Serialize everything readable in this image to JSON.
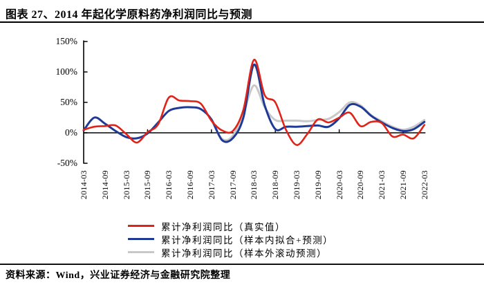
{
  "header": {
    "title": "图表 27、2014 年起化学原料药净利润同比与预测"
  },
  "footer": {
    "source": "资料来源：Wind，兴业证券经济与金融研究院整理"
  },
  "chart_data": {
    "type": "line",
    "title": "2014 年起化学原料药净利润同比与预测",
    "xlabel": "",
    "ylabel": "",
    "ylim": [
      -50,
      150
    ],
    "grid": "off",
    "legend_position": "bottom",
    "y_ticks": [
      {
        "label": "150%",
        "value": 150
      },
      {
        "label": "100%",
        "value": 100
      },
      {
        "label": "50%",
        "value": 50
      },
      {
        "label": "0%",
        "value": 0
      },
      {
        "label": "-50%",
        "value": -50
      }
    ],
    "x": [
      "2014-03",
      "2014-06",
      "2014-09",
      "2014-12",
      "2015-03",
      "2015-06",
      "2015-09",
      "2015-12",
      "2016-03",
      "2016-06",
      "2016-09",
      "2016-12",
      "2017-03",
      "2017-06",
      "2017-09",
      "2017-12",
      "2018-03",
      "2018-06",
      "2018-09",
      "2018-12",
      "2019-03",
      "2019-06",
      "2019-09",
      "2019-12",
      "2020-03",
      "2020-06",
      "2020-09",
      "2020-12",
      "2021-03",
      "2021-06",
      "2021-09",
      "2021-12",
      "2022-03"
    ],
    "x_axis_labels": [
      "2014-03",
      "2014-09",
      "2015-03",
      "2015-09",
      "2016-03",
      "2016-09",
      "2017-03",
      "2017-09",
      "2018-03",
      "2018-09",
      "2019-03",
      "2019-09",
      "2020-03",
      "2020-09",
      "2021-03",
      "2021-09",
      "2022-03"
    ],
    "series": [
      {
        "name": "累计净利润同比（真实值）",
        "color": "#e02318",
        "values": [
          5,
          10,
          11,
          12,
          -2,
          -16,
          1,
          14,
          58,
          53,
          52,
          48,
          20,
          4,
          3,
          38,
          120,
          62,
          50,
          5,
          -20,
          -2,
          22,
          17,
          25,
          33,
          11,
          18,
          16,
          -6,
          -3,
          -9,
          13
        ]
      },
      {
        "name": "累计净利润同比（样本内拟合+预测）",
        "color": "#1e3a96",
        "values": [
          4,
          25,
          15,
          3,
          -7,
          -9,
          -1,
          17,
          36,
          41,
          42,
          39,
          22,
          -12,
          -9,
          25,
          112,
          45,
          6,
          10,
          10,
          11,
          12,
          10,
          24,
          46,
          43,
          28,
          17,
          8,
          3,
          6,
          18
        ]
      },
      {
        "name": "累计净利润同比（样本外滚动预测）",
        "color": "#c8c8c8",
        "values": [
          null,
          null,
          null,
          null,
          null,
          null,
          null,
          null,
          null,
          null,
          null,
          null,
          21,
          -10,
          -5,
          32,
          78,
          42,
          21,
          20,
          20,
          19,
          21,
          23,
          34,
          50,
          45,
          29,
          19,
          10,
          5,
          10,
          21
        ]
      }
    ]
  }
}
